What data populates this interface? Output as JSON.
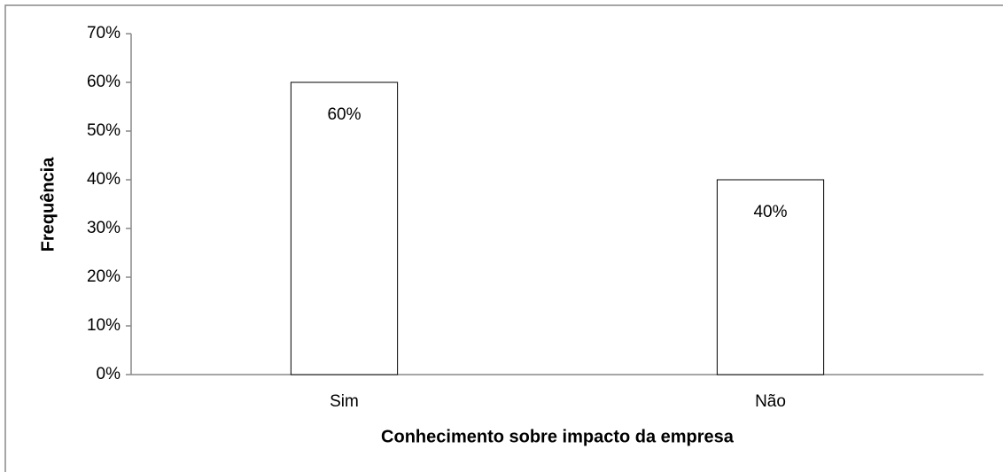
{
  "chart_data": {
    "type": "bar",
    "categories": [
      "Sim",
      "Não"
    ],
    "values": [
      60,
      40
    ],
    "value_labels": [
      "60%",
      "40%"
    ],
    "color": "#ffffff",
    "x_label": "Conhecimento sobre impacto da empresa",
    "y_label": "Frequência",
    "ylim": [
      0,
      70
    ],
    "yticks": [
      {
        "value": 0,
        "label": "0%"
      },
      {
        "value": 10,
        "label": "10%"
      },
      {
        "value": 20,
        "label": "20%"
      },
      {
        "value": 30,
        "label": "30%"
      },
      {
        "value": 40,
        "label": "40%"
      },
      {
        "value": 50,
        "label": "50%"
      },
      {
        "value": 60,
        "label": "60%"
      },
      {
        "value": 70,
        "label": "70%"
      }
    ],
    "grid": false
  }
}
